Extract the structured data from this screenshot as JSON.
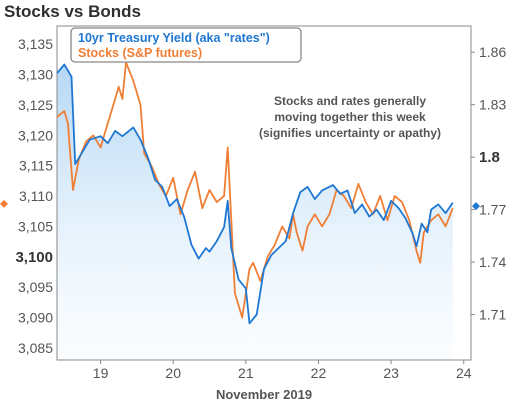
{
  "chart_data": {
    "type": "line",
    "title": "Stocks vs Bonds",
    "xlabel": "November 2019",
    "x_ticks": [
      "19",
      "20",
      "21",
      "22",
      "23",
      "24"
    ],
    "x_range": [
      18.4,
      24.1
    ],
    "left_axis": {
      "ylim": [
        3083,
        3138
      ],
      "ticks": [
        "3,135",
        "3,130",
        "3,125",
        "3,120",
        "3,115",
        "3,110",
        "3,105",
        "3,100",
        "3,095",
        "3,090",
        "3,085"
      ],
      "tick_values": [
        3135,
        3130,
        3125,
        3120,
        3115,
        3110,
        3105,
        3100,
        3095,
        3090,
        3085
      ],
      "bold_tick": "3,100",
      "current_marker": 3108.7,
      "marker_color": "#f07f35"
    },
    "right_axis": {
      "ylim": [
        1.684,
        1.875
      ],
      "ticks": [
        "1.86",
        "1.83",
        "1.8",
        "1.77",
        "1.74",
        "1.71"
      ],
      "tick_values": [
        1.86,
        1.83,
        1.8,
        1.77,
        1.74,
        1.71
      ],
      "bold_tick": "1.8",
      "current_marker": 1.772,
      "marker_color": "#1f77d4"
    },
    "legend_placement": "top-left",
    "annotation": [
      "Stocks and rates generally",
      "moving together this week",
      "(signifies uncertainty or apathy)"
    ],
    "grid": false,
    "series": [
      {
        "name": "10yr Treasury Yield (aka \"rates\")",
        "axis": "right",
        "color": "#1f77d4",
        "area_fill": true,
        "points": [
          [
            18.4,
            1.848
          ],
          [
            18.5,
            1.853
          ],
          [
            18.6,
            1.846
          ],
          [
            18.65,
            1.796
          ],
          [
            18.75,
            1.803
          ],
          [
            18.85,
            1.81
          ],
          [
            19.0,
            1.812
          ],
          [
            19.1,
            1.808
          ],
          [
            19.2,
            1.815
          ],
          [
            19.3,
            1.812
          ],
          [
            19.45,
            1.817
          ],
          [
            19.55,
            1.81
          ],
          [
            19.65,
            1.8
          ],
          [
            19.75,
            1.787
          ],
          [
            19.85,
            1.783
          ],
          [
            19.95,
            1.772
          ],
          [
            20.05,
            1.776
          ],
          [
            20.15,
            1.766
          ],
          [
            20.25,
            1.75
          ],
          [
            20.35,
            1.742
          ],
          [
            20.45,
            1.748
          ],
          [
            20.5,
            1.746
          ],
          [
            20.6,
            1.752
          ],
          [
            20.7,
            1.76
          ],
          [
            20.75,
            1.775
          ],
          [
            20.8,
            1.748
          ],
          [
            20.9,
            1.73
          ],
          [
            21.0,
            1.725
          ],
          [
            21.05,
            1.705
          ],
          [
            21.15,
            1.71
          ],
          [
            21.25,
            1.736
          ],
          [
            21.35,
            1.744
          ],
          [
            21.45,
            1.748
          ],
          [
            21.55,
            1.752
          ],
          [
            21.65,
            1.768
          ],
          [
            21.75,
            1.78
          ],
          [
            21.85,
            1.783
          ],
          [
            21.95,
            1.776
          ],
          [
            22.05,
            1.781
          ],
          [
            22.2,
            1.784
          ],
          [
            22.3,
            1.779
          ],
          [
            22.4,
            1.781
          ],
          [
            22.5,
            1.768
          ],
          [
            22.6,
            1.773
          ],
          [
            22.7,
            1.766
          ],
          [
            22.8,
            1.77
          ],
          [
            22.9,
            1.764
          ],
          [
            23.0,
            1.775
          ],
          [
            23.1,
            1.771
          ],
          [
            23.2,
            1.765
          ],
          [
            23.3,
            1.756
          ],
          [
            23.35,
            1.749
          ],
          [
            23.42,
            1.762
          ],
          [
            23.5,
            1.757
          ],
          [
            23.55,
            1.77
          ],
          [
            23.65,
            1.773
          ],
          [
            23.75,
            1.768
          ],
          [
            23.85,
            1.774
          ]
        ]
      },
      {
        "name": "Stocks (S&P futures)",
        "axis": "left",
        "color": "#f07f35",
        "points": [
          [
            18.4,
            3123
          ],
          [
            18.5,
            3124
          ],
          [
            18.55,
            3122
          ],
          [
            18.62,
            3111
          ],
          [
            18.7,
            3116
          ],
          [
            18.8,
            3119
          ],
          [
            18.9,
            3120
          ],
          [
            19.0,
            3118
          ],
          [
            19.1,
            3122
          ],
          [
            19.15,
            3124
          ],
          [
            19.25,
            3128
          ],
          [
            19.3,
            3126
          ],
          [
            19.35,
            3132
          ],
          [
            19.45,
            3129
          ],
          [
            19.55,
            3125
          ],
          [
            19.6,
            3117
          ],
          [
            19.7,
            3115
          ],
          [
            19.8,
            3112
          ],
          [
            19.9,
            3110
          ],
          [
            20.0,
            3113
          ],
          [
            20.1,
            3107
          ],
          [
            20.2,
            3111
          ],
          [
            20.3,
            3114
          ],
          [
            20.4,
            3108
          ],
          [
            20.5,
            3111
          ],
          [
            20.6,
            3109
          ],
          [
            20.7,
            3110
          ],
          [
            20.75,
            3118
          ],
          [
            20.8,
            3106
          ],
          [
            20.85,
            3094
          ],
          [
            20.95,
            3090
          ],
          [
            21.05,
            3098
          ],
          [
            21.1,
            3099
          ],
          [
            21.2,
            3096
          ],
          [
            21.3,
            3100
          ],
          [
            21.4,
            3102
          ],
          [
            21.5,
            3105
          ],
          [
            21.6,
            3103
          ],
          [
            21.65,
            3107
          ],
          [
            21.7,
            3104
          ],
          [
            21.78,
            3101
          ],
          [
            21.85,
            3105
          ],
          [
            21.95,
            3107
          ],
          [
            22.05,
            3105
          ],
          [
            22.15,
            3107
          ],
          [
            22.25,
            3111
          ],
          [
            22.35,
            3110
          ],
          [
            22.45,
            3108
          ],
          [
            22.55,
            3112
          ],
          [
            22.65,
            3109
          ],
          [
            22.75,
            3107
          ],
          [
            22.85,
            3110
          ],
          [
            22.95,
            3106
          ],
          [
            23.05,
            3110
          ],
          [
            23.15,
            3109
          ],
          [
            23.25,
            3106
          ],
          [
            23.35,
            3101
          ],
          [
            23.4,
            3099
          ],
          [
            23.45,
            3104
          ],
          [
            23.55,
            3106
          ],
          [
            23.65,
            3107
          ],
          [
            23.75,
            3105
          ],
          [
            23.85,
            3108
          ]
        ]
      }
    ]
  }
}
